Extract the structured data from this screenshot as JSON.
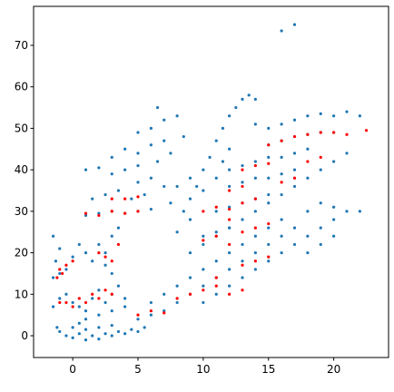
{
  "chart_data": {
    "type": "scatter",
    "xlim": [
      -3.0,
      24.2
    ],
    "ylim": [
      -5.25,
      79.4
    ],
    "xticks": [
      0,
      5,
      10,
      15,
      20
    ],
    "yticks": [
      0,
      10,
      20,
      30,
      40,
      50,
      60,
      70
    ],
    "series": [
      {
        "color": "#1f77b4",
        "x": [
          -1,
          -0.5,
          0,
          0.5,
          1,
          1.5,
          2,
          2.5,
          3,
          3.5,
          4,
          4.5,
          5,
          5.5,
          0,
          1,
          2,
          3,
          -1.2,
          0.5,
          -1.5,
          -1,
          -0.5,
          0,
          0.5,
          1,
          1.5,
          2,
          2.5,
          3,
          3.5,
          4,
          1,
          2,
          3,
          4,
          -1.5,
          -1.3,
          -1,
          -1.5,
          -0.5,
          0,
          -1,
          0.5,
          1,
          1.5,
          2,
          2.5,
          3,
          3.5,
          2.5,
          3,
          1,
          2,
          3,
          4,
          5,
          6,
          1.5,
          2.5,
          3.5,
          4.5,
          5.5,
          1,
          2,
          3,
          4,
          5,
          3,
          4,
          5,
          6,
          7,
          5,
          6,
          7,
          6.5,
          5,
          6,
          7,
          6.5,
          8,
          8.5,
          7.5,
          5,
          6,
          7,
          6,
          7,
          8,
          8,
          9,
          9,
          10,
          10,
          11,
          11,
          12,
          12,
          13,
          13,
          14,
          14,
          15,
          15,
          16,
          16,
          17,
          18,
          10,
          11,
          12,
          13,
          14,
          15,
          16,
          17,
          18,
          19,
          20,
          9,
          10,
          11,
          12,
          13,
          14,
          15,
          16,
          17,
          18,
          19,
          20,
          21,
          8,
          8.5,
          9,
          9.5,
          10,
          9,
          10.5,
          11,
          11.5,
          12,
          12.5,
          13,
          13.5,
          14,
          8,
          7.5,
          9,
          10,
          11,
          11.5,
          12,
          14,
          15,
          16,
          17,
          18,
          19,
          20,
          21,
          22,
          15,
          16,
          17,
          18,
          19,
          20,
          12,
          13,
          14,
          15,
          16,
          17,
          18,
          12,
          13,
          14,
          15,
          16,
          17,
          11,
          12,
          13,
          14,
          15,
          19,
          20,
          21,
          22,
          10,
          11,
          12,
          18,
          19,
          20,
          16,
          17
        ],
        "values": [
          1,
          0,
          -0.5,
          0.5,
          -1,
          0,
          -0.8,
          0.5,
          0,
          1,
          0.5,
          1.5,
          1,
          2,
          2,
          1.5,
          2,
          2.5,
          2,
          3,
          7,
          9,
          10,
          8,
          7,
          6,
          9,
          11,
          8,
          10,
          12,
          9,
          4,
          5,
          6,
          7,
          14,
          18,
          21,
          24,
          16,
          19,
          15,
          22,
          20,
          18,
          22,
          20,
          24,
          26,
          17,
          15,
          29,
          29.5,
          30,
          29.5,
          30,
          30.5,
          33,
          34,
          35,
          33,
          34,
          40,
          40.5,
          39,
          40,
          41,
          43,
          45,
          44,
          46,
          47,
          37,
          38,
          36,
          42,
          49,
          50,
          52,
          55,
          53,
          48,
          44,
          4,
          5,
          6,
          8,
          10,
          8,
          12,
          10,
          14,
          12,
          16,
          14,
          18,
          16,
          20,
          18,
          22,
          20,
          24,
          22,
          26,
          24,
          28,
          26,
          30,
          8,
          10,
          12,
          14,
          16,
          18,
          20,
          22,
          24,
          26,
          28,
          20,
          22,
          24,
          26,
          28,
          30,
          32,
          34,
          36,
          38,
          40,
          42,
          44,
          25,
          30,
          33,
          36,
          40,
          38,
          43,
          47,
          50,
          53,
          55,
          57,
          58,
          57,
          36,
          32,
          28,
          35,
          38,
          42,
          45,
          51,
          50,
          51,
          52,
          53,
          53.5,
          53,
          54,
          53,
          46,
          47,
          48,
          48.5,
          49,
          49,
          40,
          41,
          42,
          43,
          43,
          44,
          45,
          36,
          37,
          38,
          38,
          39,
          40,
          30,
          31,
          32,
          33,
          34,
          32,
          31,
          30,
          30,
          24,
          25,
          26,
          20,
          22,
          24,
          73.5,
          75
        ]
      },
      {
        "color": "#ff0000",
        "x": [
          -1,
          -0.8,
          -0.5,
          -1.2,
          0,
          -1,
          -0.5,
          0,
          0.5,
          1,
          1.5,
          2,
          2.5,
          3,
          2,
          2.5,
          3,
          3.5,
          1,
          2,
          3,
          4,
          5,
          3,
          4,
          5,
          5,
          6,
          7,
          8,
          9,
          10,
          11,
          12,
          13,
          11,
          10,
          11,
          12,
          13,
          14,
          10,
          11,
          12,
          13,
          14,
          15,
          12,
          13,
          14,
          15,
          16,
          17,
          15,
          16,
          17,
          18,
          19,
          20,
          21,
          22.5,
          19,
          18,
          13,
          14,
          15,
          12,
          13
        ],
        "values": [
          16,
          15,
          17,
          14,
          18,
          8,
          8,
          7,
          9,
          8,
          10,
          9,
          11,
          10,
          20,
          19,
          18,
          22,
          29.5,
          29,
          30,
          29.5,
          30,
          33,
          33,
          33.5,
          5,
          6,
          5.5,
          9,
          10,
          11,
          12,
          10,
          11,
          14,
          30,
          31,
          30.5,
          32,
          33,
          23,
          24,
          22,
          25,
          26,
          27,
          28,
          40,
          41,
          41.5,
          37,
          38,
          46,
          47,
          48,
          48.5,
          49,
          49,
          48.5,
          49.5,
          43,
          42,
          17,
          18,
          19,
          35,
          36
        ]
      }
    ]
  }
}
